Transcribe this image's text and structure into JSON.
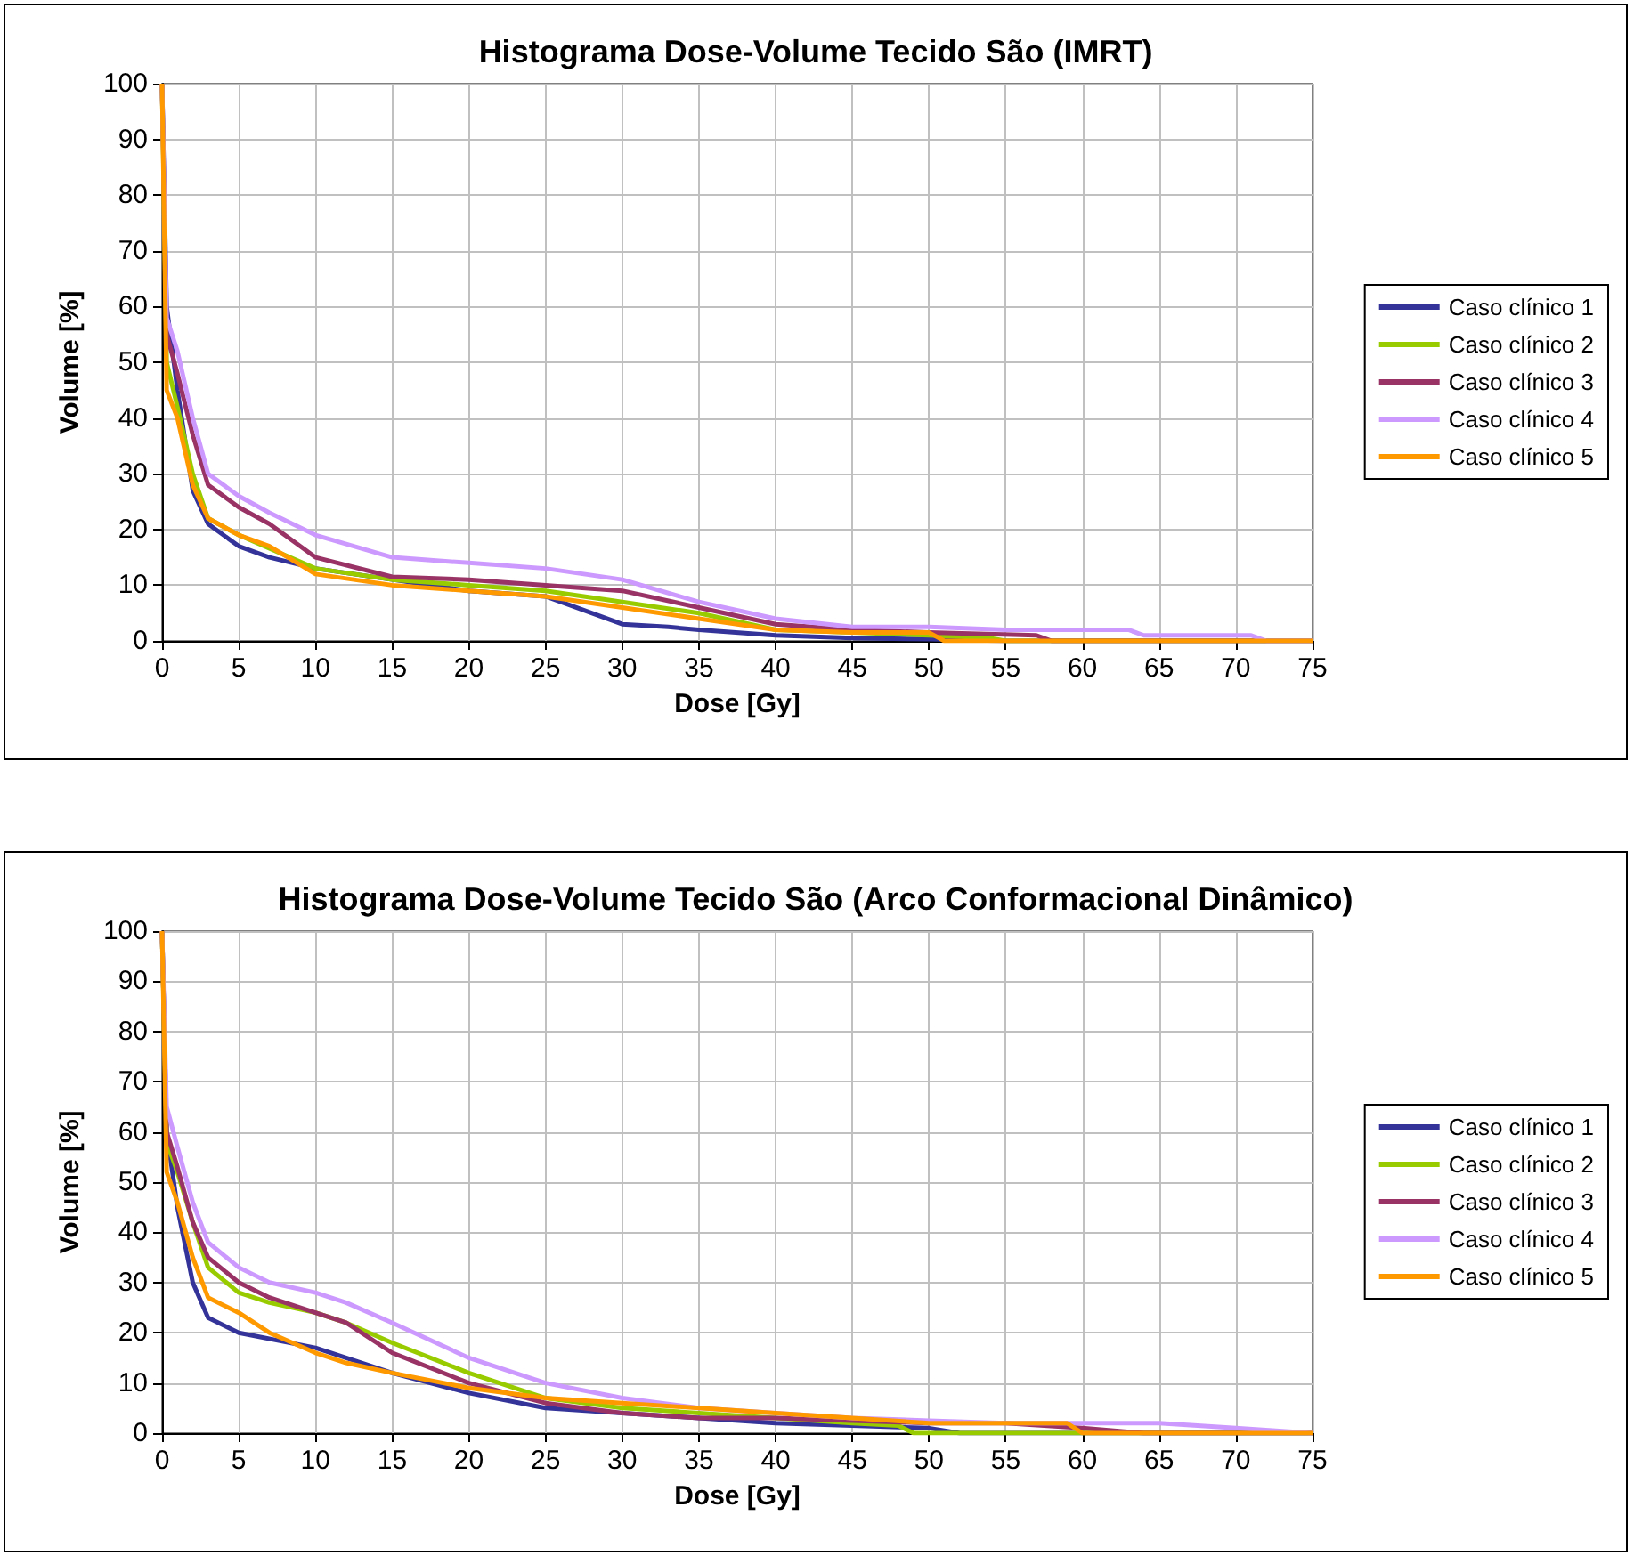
{
  "chart_data": [
    {
      "type": "line",
      "title": "Histograma Dose-Volume Tecido São (IMRT)",
      "xlabel": "Dose [Gy]",
      "ylabel": "Volume [%]",
      "xlim": [
        0,
        75
      ],
      "xticks": [
        0,
        5,
        10,
        15,
        20,
        25,
        30,
        35,
        40,
        45,
        50,
        55,
        60,
        65,
        70,
        75
      ],
      "ylim": [
        0,
        100
      ],
      "yticks": [
        0,
        10,
        20,
        30,
        40,
        50,
        60,
        70,
        80,
        90,
        100
      ],
      "grid": true,
      "legend": "right",
      "marker": "none",
      "line_style": "solid",
      "series": [
        {
          "name": "Caso clínico 1",
          "color": "#333399",
          "x": [
            0,
            0.3,
            1,
            2,
            3,
            5,
            7,
            10,
            15,
            20,
            25,
            27,
            30,
            33,
            35,
            40,
            45,
            50,
            55,
            75
          ],
          "values": [
            100,
            60,
            45,
            27,
            21,
            17,
            15,
            13,
            11,
            9,
            8,
            6,
            3,
            2.5,
            2,
            1,
            0.5,
            0.3,
            0,
            0
          ]
        },
        {
          "name": "Caso clínico 2",
          "color": "#99cc00",
          "x": [
            0,
            0.3,
            1,
            2,
            3,
            5,
            10,
            15,
            20,
            25,
            30,
            35,
            40,
            45,
            50,
            54,
            55,
            75
          ],
          "values": [
            100,
            50,
            42,
            30,
            22,
            19,
            13,
            11,
            10,
            9,
            7,
            5,
            2,
            1.5,
            1,
            0.5,
            0,
            0
          ]
        },
        {
          "name": "Caso clínico 3",
          "color": "#993366",
          "x": [
            0,
            0.3,
            1,
            2,
            3,
            5,
            7,
            10,
            15,
            20,
            25,
            30,
            35,
            40,
            45,
            50,
            57,
            58,
            75
          ],
          "values": [
            100,
            55,
            48,
            37,
            28,
            24,
            21,
            15,
            11.5,
            11,
            10,
            9,
            6,
            3,
            2,
            1.5,
            1,
            0,
            0
          ]
        },
        {
          "name": "Caso clínico 4",
          "color": "#cc99ff",
          "x": [
            0,
            0.3,
            1,
            2,
            3,
            5,
            7,
            10,
            15,
            20,
            25,
            30,
            35,
            40,
            45,
            50,
            55,
            63,
            64,
            71,
            72,
            75
          ],
          "values": [
            100,
            58,
            52,
            40,
            30,
            26,
            23,
            19,
            15,
            14,
            13,
            11,
            7,
            4,
            2.5,
            2.5,
            2,
            2,
            1,
            1,
            0,
            0
          ]
        },
        {
          "name": "Caso clínico 5",
          "color": "#ff9900",
          "x": [
            0,
            0.3,
            1,
            2,
            3,
            5,
            7,
            10,
            15,
            20,
            25,
            30,
            35,
            40,
            45,
            50,
            51,
            75
          ],
          "values": [
            100,
            45,
            40,
            28,
            22,
            19,
            17,
            12,
            10,
            9,
            8,
            6,
            4,
            2,
            1.5,
            1.5,
            0,
            0
          ]
        }
      ]
    },
    {
      "type": "line",
      "title": "Histograma Dose-Volume Tecido São (Arco Conformacional Dinâmico)",
      "xlabel": "Dose [Gy]",
      "ylabel": "Volume [%]",
      "xlim": [
        0,
        75
      ],
      "xticks": [
        0,
        5,
        10,
        15,
        20,
        25,
        30,
        35,
        40,
        45,
        50,
        55,
        60,
        65,
        70,
        75
      ],
      "ylim": [
        0,
        100
      ],
      "yticks": [
        0,
        10,
        20,
        30,
        40,
        50,
        60,
        70,
        80,
        90,
        100
      ],
      "grid": true,
      "legend": "right",
      "marker": "none",
      "line_style": "solid",
      "series": [
        {
          "name": "Caso clínico 1",
          "color": "#333399",
          "x": [
            0,
            0.3,
            1,
            2,
            3,
            5,
            10,
            15,
            20,
            25,
            30,
            35,
            40,
            45,
            50,
            52,
            75
          ],
          "values": [
            100,
            60,
            45,
            30,
            23,
            20,
            17,
            12,
            8,
            5,
            4,
            3,
            2,
            1.5,
            1,
            0,
            0
          ]
        },
        {
          "name": "Caso clínico 2",
          "color": "#99cc00",
          "x": [
            0,
            0.3,
            1,
            2,
            3,
            5,
            7,
            10,
            12,
            15,
            20,
            25,
            30,
            35,
            40,
            45,
            48,
            49,
            75
          ],
          "values": [
            100,
            58,
            52,
            42,
            33,
            28,
            26,
            24,
            22,
            18,
            12,
            7,
            5,
            4,
            3,
            2,
            1.5,
            0,
            0
          ]
        },
        {
          "name": "Caso clínico 3",
          "color": "#993366",
          "x": [
            0,
            0.3,
            1,
            2,
            3,
            5,
            7,
            10,
            12,
            15,
            20,
            25,
            30,
            35,
            40,
            45,
            50,
            55,
            60,
            64,
            75
          ],
          "values": [
            100,
            60,
            53,
            42,
            35,
            30,
            27,
            24,
            22,
            16,
            10,
            6,
            4,
            3,
            3,
            2.5,
            2,
            2,
            1,
            0,
            0
          ]
        },
        {
          "name": "Caso clínico 4",
          "color": "#cc99ff",
          "x": [
            0,
            0.3,
            1,
            2,
            3,
            5,
            7,
            10,
            12,
            15,
            20,
            25,
            30,
            35,
            40,
            45,
            50,
            55,
            60,
            65,
            70,
            75
          ],
          "values": [
            100,
            65,
            57,
            46,
            38,
            33,
            30,
            28,
            26,
            22,
            15,
            10,
            7,
            5,
            4,
            3,
            2.5,
            2,
            2,
            2,
            1,
            0
          ]
        },
        {
          "name": "Caso clínico 5",
          "color": "#ff9900",
          "x": [
            0,
            0.3,
            1,
            2,
            3,
            5,
            7,
            10,
            12,
            15,
            20,
            25,
            30,
            35,
            40,
            45,
            50,
            55,
            59,
            60,
            75
          ],
          "values": [
            100,
            52,
            46,
            35,
            27,
            24,
            20,
            16,
            14,
            12,
            9,
            7,
            6,
            5,
            4,
            3,
            2,
            2,
            2,
            0,
            0
          ]
        }
      ]
    }
  ]
}
